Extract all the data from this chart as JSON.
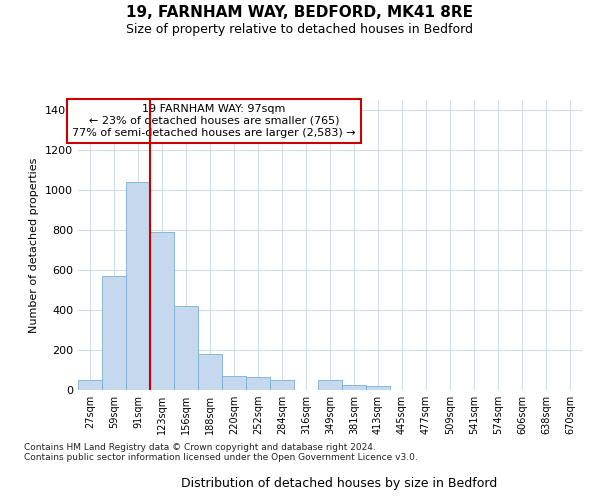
{
  "title1": "19, FARNHAM WAY, BEDFORD, MK41 8RE",
  "title2": "Size of property relative to detached houses in Bedford",
  "xlabel": "Distribution of detached houses by size in Bedford",
  "ylabel": "Number of detached properties",
  "bar_color": "#c5d8ee",
  "bar_edge_color": "#7aafd4",
  "vline_color": "#cc0000",
  "annotation_text": "19 FARNHAM WAY: 97sqm\n← 23% of detached houses are smaller (765)\n77% of semi-detached houses are larger (2,583) →",
  "annotation_box_facecolor": "#ffffff",
  "annotation_box_edgecolor": "#cc0000",
  "categories": [
    "27sqm",
    "59sqm",
    "91sqm",
    "123sqm",
    "156sqm",
    "188sqm",
    "220sqm",
    "252sqm",
    "284sqm",
    "316sqm",
    "349sqm",
    "381sqm",
    "413sqm",
    "445sqm",
    "477sqm",
    "509sqm",
    "541sqm",
    "574sqm",
    "606sqm",
    "638sqm",
    "670sqm"
  ],
  "values": [
    50,
    570,
    1040,
    790,
    420,
    180,
    70,
    65,
    50,
    0,
    50,
    25,
    20,
    0,
    0,
    0,
    0,
    0,
    0,
    0,
    0
  ],
  "ylim": [
    0,
    1450
  ],
  "yticks": [
    0,
    200,
    400,
    600,
    800,
    1000,
    1200,
    1400
  ],
  "footnote1": "Contains HM Land Registry data © Crown copyright and database right 2024.",
  "footnote2": "Contains public sector information licensed under the Open Government Licence v3.0.",
  "bg_color": "#ffffff",
  "grid_color": "#d0dce8"
}
